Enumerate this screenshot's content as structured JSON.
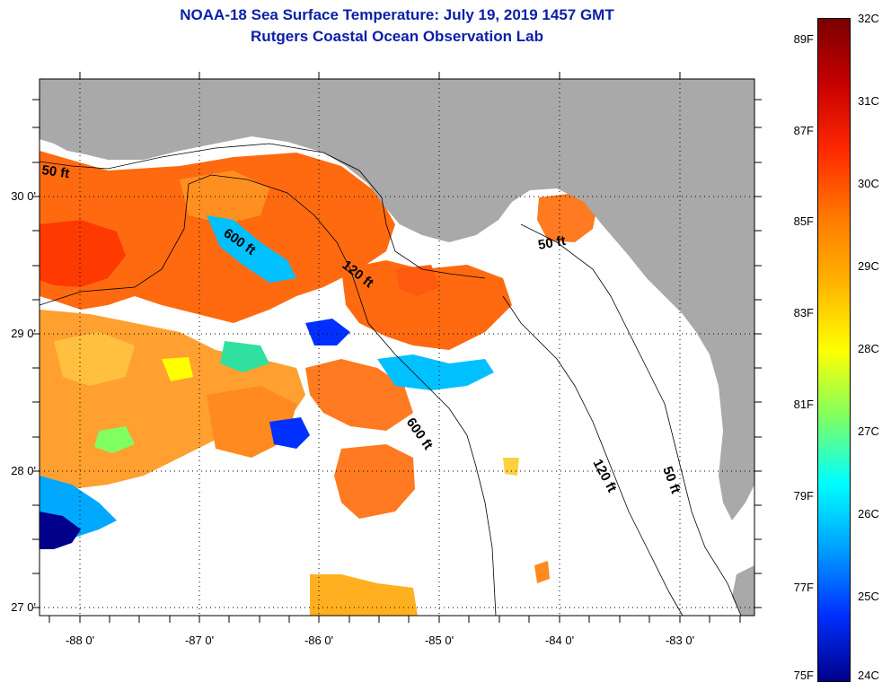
{
  "title_line1": "NOAA-18 Sea Surface Temperature:  July 19, 2019 1457 GMT",
  "title_line2": "Rutgers Coastal Ocean Observation Lab",
  "map": {
    "lat_labels": [
      "30 0'",
      "29 0'",
      "28 0'",
      "27 0'"
    ],
    "lon_labels": [
      "-88 0'",
      "-87 0'",
      "-86 0'",
      "-85 0'",
      "-84 0'",
      "-83 0'"
    ],
    "contour_labels": [
      "50 ft",
      "600 ft",
      "120 ft",
      "50 ft",
      "600 ft",
      "120 ft",
      "50 ft"
    ],
    "colors": {
      "land": "#a9a9a9",
      "ocean_no_data": "#ffffff"
    }
  },
  "colorbar": {
    "fahrenheit_labels": [
      "89F",
      "87F",
      "85F",
      "83F",
      "81F",
      "79F",
      "77F",
      "75F"
    ],
    "celsius_labels": [
      "32C",
      "31C",
      "30C",
      "29C",
      "28C",
      "27C",
      "26C",
      "25C",
      "24C"
    ],
    "colors": [
      "#7a0000",
      "#c80000",
      "#ff2a00",
      "#ff7a00",
      "#ffb400",
      "#ffff00",
      "#80ff60",
      "#00ffff",
      "#00a0ff",
      "#0030ff",
      "#00008a"
    ]
  }
}
